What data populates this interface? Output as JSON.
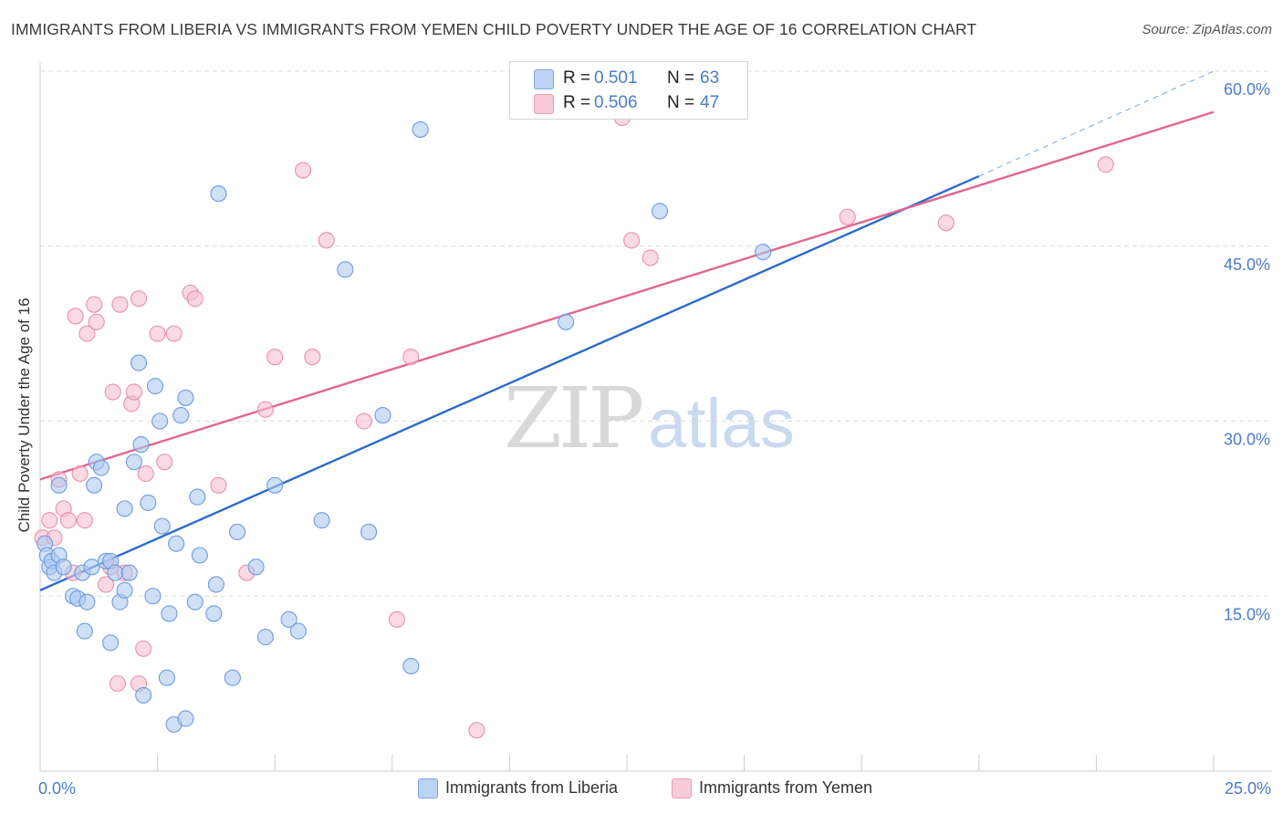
{
  "title": "IMMIGRANTS FROM LIBERIA VS IMMIGRANTS FROM YEMEN CHILD POVERTY UNDER THE AGE OF 16 CORRELATION CHART",
  "source": "Source: ZipAtlas.com",
  "watermark": {
    "zip": "ZIP",
    "atlas": "atlas"
  },
  "colors": {
    "liberia_fill": "#aec9f0",
    "liberia_stroke": "#6e9be0",
    "liberia_line": "#2b6cc9",
    "yemen_fill": "#f6bfd0",
    "yemen_stroke": "#e98fad",
    "yemen_line": "#e0668f",
    "grid": "#dcdcdc",
    "tick_label": "#4a7cc9"
  },
  "legend": {
    "liberia": {
      "r_label": "R =",
      "r_value": "0.501",
      "n_label": "N =",
      "n_value": "63"
    },
    "yemen": {
      "r_label": "R =",
      "r_value": "0.506",
      "n_label": "N =",
      "n_value": "47"
    }
  },
  "chart_data": {
    "type": "scatter",
    "title": "IMMIGRANTS FROM LIBERIA VS IMMIGRANTS FROM YEMEN CHILD POVERTY UNDER THE AGE OF 16 CORRELATION CHART",
    "xlabel": "",
    "ylabel": "Child Poverty Under the Age of 16",
    "xlim": [
      0,
      25
    ],
    "ylim": [
      0,
      60
    ],
    "x_tick_labels": [
      "0.0%",
      "25.0%"
    ],
    "y_ticks": [
      15,
      30,
      45,
      60
    ],
    "y_tick_labels": [
      "15.0%",
      "30.0%",
      "45.0%",
      "60.0%"
    ],
    "grid": true,
    "legend_position": "bottom",
    "series": [
      {
        "name": "Immigrants from Liberia",
        "r": 0.501,
        "n": 63,
        "trend": {
          "x": [
            0,
            20
          ],
          "y": [
            15.5,
            51.0
          ],
          "dashed_to": {
            "x": 25,
            "y": 60.0
          }
        },
        "points": [
          [
            0.1,
            19.5
          ],
          [
            0.15,
            18.5
          ],
          [
            0.2,
            17.5
          ],
          [
            0.25,
            18.0
          ],
          [
            0.3,
            17.0
          ],
          [
            0.4,
            18.5
          ],
          [
            0.5,
            17.5
          ],
          [
            0.7,
            15.0
          ],
          [
            0.8,
            14.8
          ],
          [
            0.9,
            17.0
          ],
          [
            1.0,
            14.5
          ],
          [
            1.1,
            17.5
          ],
          [
            0.4,
            24.5
          ],
          [
            1.15,
            24.5
          ],
          [
            1.2,
            26.5
          ],
          [
            1.3,
            26.0
          ],
          [
            1.4,
            18.0
          ],
          [
            1.5,
            18.0
          ],
          [
            1.6,
            17.0
          ],
          [
            1.7,
            14.5
          ],
          [
            1.8,
            15.5
          ],
          [
            1.9,
            17.0
          ],
          [
            1.8,
            22.5
          ],
          [
            2.0,
            26.5
          ],
          [
            2.1,
            35.0
          ],
          [
            2.15,
            28.0
          ],
          [
            2.3,
            23.0
          ],
          [
            2.4,
            15.0
          ],
          [
            2.45,
            33.0
          ],
          [
            2.55,
            30.0
          ],
          [
            2.6,
            21.0
          ],
          [
            2.75,
            13.5
          ],
          [
            2.9,
            19.5
          ],
          [
            3.0,
            30.5
          ],
          [
            3.1,
            32.0
          ],
          [
            3.3,
            14.5
          ],
          [
            3.35,
            23.5
          ],
          [
            3.4,
            18.5
          ],
          [
            3.7,
            13.5
          ],
          [
            3.75,
            16.0
          ],
          [
            4.2,
            20.5
          ],
          [
            4.6,
            17.5
          ],
          [
            4.8,
            11.5
          ],
          [
            5.0,
            24.5
          ],
          [
            5.3,
            13.0
          ],
          [
            5.5,
            12.0
          ],
          [
            6.0,
            21.5
          ],
          [
            6.5,
            43.0
          ],
          [
            7.0,
            20.5
          ],
          [
            7.3,
            30.5
          ],
          [
            7.9,
            9.0
          ],
          [
            8.1,
            55.0
          ],
          [
            11.2,
            38.5
          ],
          [
            13.2,
            48.0
          ],
          [
            15.4,
            44.5
          ],
          [
            3.8,
            49.5
          ],
          [
            1.5,
            11.0
          ],
          [
            2.2,
            6.5
          ],
          [
            2.7,
            8.0
          ],
          [
            4.1,
            8.0
          ],
          [
            2.85,
            4.0
          ],
          [
            3.1,
            4.5
          ],
          [
            0.95,
            12.0
          ]
        ]
      },
      {
        "name": "Immigrants from Yemen",
        "r": 0.506,
        "n": 47,
        "trend": {
          "x": [
            0,
            25
          ],
          "y": [
            25.0,
            56.5
          ]
        },
        "points": [
          [
            0.05,
            20.0
          ],
          [
            0.2,
            21.5
          ],
          [
            0.3,
            20.0
          ],
          [
            0.4,
            25.0
          ],
          [
            0.5,
            22.5
          ],
          [
            0.6,
            21.5
          ],
          [
            0.7,
            17.0
          ],
          [
            0.75,
            39.0
          ],
          [
            0.85,
            25.5
          ],
          [
            0.95,
            21.5
          ],
          [
            1.0,
            37.5
          ],
          [
            1.15,
            40.0
          ],
          [
            1.2,
            38.5
          ],
          [
            1.4,
            16.0
          ],
          [
            1.5,
            17.5
          ],
          [
            1.55,
            32.5
          ],
          [
            1.7,
            40.0
          ],
          [
            1.8,
            17.0
          ],
          [
            1.95,
            31.5
          ],
          [
            2.0,
            32.5
          ],
          [
            2.1,
            40.5
          ],
          [
            2.25,
            25.5
          ],
          [
            2.5,
            37.5
          ],
          [
            2.65,
            26.5
          ],
          [
            2.85,
            37.5
          ],
          [
            3.2,
            41.0
          ],
          [
            3.3,
            40.5
          ],
          [
            3.8,
            24.5
          ],
          [
            4.4,
            17.0
          ],
          [
            4.8,
            31.0
          ],
          [
            5.0,
            35.5
          ],
          [
            5.6,
            51.5
          ],
          [
            5.8,
            35.5
          ],
          [
            6.1,
            45.5
          ],
          [
            6.9,
            30.0
          ],
          [
            7.6,
            13.0
          ],
          [
            7.9,
            35.5
          ],
          [
            9.3,
            3.5
          ],
          [
            12.4,
            56.0
          ],
          [
            12.6,
            45.5
          ],
          [
            13.0,
            44.0
          ],
          [
            17.2,
            47.5
          ],
          [
            19.3,
            47.0
          ],
          [
            22.7,
            52.0
          ],
          [
            1.65,
            7.5
          ],
          [
            2.1,
            7.5
          ],
          [
            2.2,
            10.5
          ]
        ]
      }
    ]
  },
  "bottom_legend": {
    "liberia_label": "Immigrants from Liberia",
    "yemen_label": "Immigrants from Yemen"
  }
}
